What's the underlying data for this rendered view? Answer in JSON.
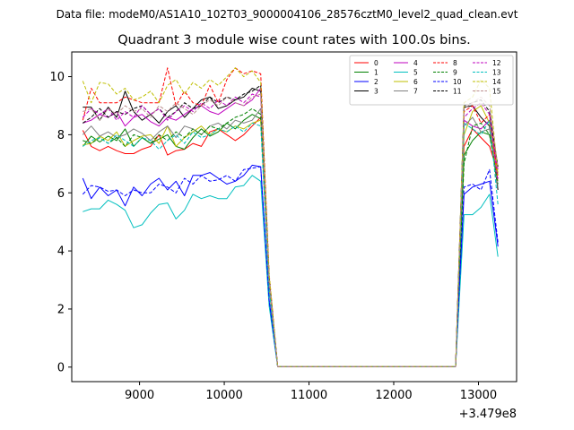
{
  "figure": {
    "suptitle": "Data file: modeM0/AS1A10_102T03_9000004106_28576cztM0_level2_quad_clean.evt"
  },
  "chart_data": {
    "type": "line",
    "title": "Quadrant 3 module wise count rates with 100.0s bins.",
    "xlabel": "",
    "ylabel": "",
    "x_offset_label": "+3.479e8",
    "xlim": [
      8200,
      13450
    ],
    "ylim": [
      -0.5,
      10.85
    ],
    "xticks": [
      9000,
      10000,
      11000,
      12000,
      13000
    ],
    "xtick_labels": [
      "9000",
      "10000",
      "11000",
      "12000",
      "13000"
    ],
    "yticks": [
      0,
      2,
      4,
      6,
      8,
      10
    ],
    "ytick_labels": [
      "0",
      "2",
      "4",
      "6",
      "8",
      "10"
    ],
    "grid": false,
    "legend": {
      "placement": "top-right",
      "columns": 4
    },
    "x": [
      8330,
      8430,
      8530,
      8630,
      8730,
      8830,
      8930,
      9030,
      9130,
      9230,
      9330,
      9430,
      9530,
      9630,
      9730,
      9830,
      9930,
      10030,
      10130,
      10230,
      10330,
      10430,
      10530,
      10630,
      10730,
      10830,
      10930,
      11030,
      11130,
      11230,
      11330,
      11430,
      11530,
      11630,
      11730,
      11830,
      11930,
      12030,
      12130,
      12230,
      12330,
      12430,
      12530,
      12630,
      12730,
      12830,
      12930,
      13030,
      13130,
      13230
    ],
    "series": [
      {
        "name": "0",
        "color": "#ff0000",
        "dash": "solid",
        "values": [
          8.15,
          7.6,
          7.45,
          7.6,
          7.45,
          7.35,
          7.35,
          7.5,
          7.6,
          8.0,
          7.3,
          7.45,
          7.5,
          7.7,
          7.6,
          8.1,
          8.2,
          8.0,
          7.8,
          8.0,
          8.3,
          8.6,
          2.8,
          0.02,
          0.02,
          0.02,
          0.02,
          0.02,
          0.02,
          0.02,
          0.02,
          0.02,
          0.02,
          0.02,
          0.02,
          0.02,
          0.02,
          0.02,
          0.02,
          0.02,
          0.02,
          0.02,
          0.02,
          0.02,
          0.02,
          7.6,
          8.2,
          7.9,
          7.6,
          6.7
        ]
      },
      {
        "name": "1",
        "color": "#008000",
        "dash": "solid",
        "values": [
          7.6,
          7.95,
          7.75,
          7.95,
          7.8,
          8.2,
          7.6,
          7.9,
          7.7,
          7.85,
          8.0,
          7.6,
          7.5,
          7.9,
          8.2,
          7.95,
          8.1,
          8.4,
          8.2,
          8.5,
          8.7,
          8.55,
          2.8,
          0.02,
          0.02,
          0.02,
          0.02,
          0.02,
          0.02,
          0.02,
          0.02,
          0.02,
          0.02,
          0.02,
          0.02,
          0.02,
          0.02,
          0.02,
          0.02,
          0.02,
          0.02,
          0.02,
          0.02,
          0.02,
          0.02,
          7.3,
          7.8,
          8.1,
          8.0,
          6.6
        ]
      },
      {
        "name": "2",
        "color": "#0000ff",
        "dash": "solid",
        "values": [
          6.5,
          5.8,
          6.2,
          5.9,
          6.1,
          5.55,
          6.2,
          5.9,
          6.3,
          6.5,
          6.1,
          6.4,
          5.9,
          6.6,
          6.6,
          6.7,
          6.5,
          6.3,
          6.4,
          6.6,
          6.95,
          6.9,
          2.3,
          0.02,
          0.02,
          0.02,
          0.02,
          0.02,
          0.02,
          0.02,
          0.02,
          0.02,
          0.02,
          0.02,
          0.02,
          0.02,
          0.02,
          0.02,
          0.02,
          0.02,
          0.02,
          0.02,
          0.02,
          0.02,
          0.02,
          5.95,
          6.2,
          6.3,
          6.4,
          4.15
        ]
      },
      {
        "name": "3",
        "color": "#000000",
        "dash": "solid",
        "values": [
          8.95,
          8.95,
          8.5,
          8.95,
          8.6,
          9.5,
          8.8,
          8.5,
          8.7,
          8.4,
          8.8,
          9.0,
          8.6,
          8.9,
          9.2,
          9.3,
          8.9,
          9.0,
          9.2,
          9.3,
          9.6,
          9.5,
          3.0,
          0.02,
          0.02,
          0.02,
          0.02,
          0.02,
          0.02,
          0.02,
          0.02,
          0.02,
          0.02,
          0.02,
          0.02,
          0.02,
          0.02,
          0.02,
          0.02,
          0.02,
          0.02,
          0.02,
          0.02,
          0.02,
          0.02,
          8.95,
          9.0,
          8.6,
          8.3,
          6.1
        ]
      },
      {
        "name": "4",
        "color": "#bf00bf",
        "dash": "solid",
        "values": [
          8.4,
          8.5,
          8.7,
          8.6,
          8.8,
          8.3,
          8.6,
          8.7,
          8.45,
          8.3,
          8.6,
          8.5,
          8.7,
          8.9,
          9.0,
          8.8,
          8.7,
          8.9,
          9.1,
          9.0,
          9.2,
          9.6,
          3.0,
          0.02,
          0.02,
          0.02,
          0.02,
          0.02,
          0.02,
          0.02,
          0.02,
          0.02,
          0.02,
          0.02,
          0.02,
          0.02,
          0.02,
          0.02,
          0.02,
          0.02,
          0.02,
          0.02,
          0.02,
          0.02,
          0.02,
          8.5,
          8.3,
          8.2,
          8.5,
          6.8
        ]
      },
      {
        "name": "5",
        "color": "#00bfbf",
        "dash": "solid",
        "values": [
          5.35,
          5.45,
          5.45,
          5.75,
          5.6,
          5.4,
          4.8,
          4.9,
          5.3,
          5.6,
          5.65,
          5.1,
          5.4,
          5.95,
          5.8,
          5.9,
          5.8,
          5.8,
          6.2,
          6.25,
          6.6,
          6.4,
          2.1,
          0.02,
          0.02,
          0.02,
          0.02,
          0.02,
          0.02,
          0.02,
          0.02,
          0.02,
          0.02,
          0.02,
          0.02,
          0.02,
          0.02,
          0.02,
          0.02,
          0.02,
          0.02,
          0.02,
          0.02,
          0.02,
          0.02,
          5.25,
          5.25,
          5.5,
          5.95,
          3.8
        ]
      },
      {
        "name": "6",
        "color": "#bfbf00",
        "dash": "solid",
        "values": [
          7.65,
          7.7,
          7.95,
          7.8,
          8.1,
          7.6,
          7.8,
          7.95,
          8.0,
          7.7,
          8.3,
          7.6,
          7.9,
          8.1,
          8.3,
          8.0,
          8.2,
          8.1,
          8.3,
          8.2,
          8.4,
          8.5,
          2.7,
          0.02,
          0.02,
          0.02,
          0.02,
          0.02,
          0.02,
          0.02,
          0.02,
          0.02,
          0.02,
          0.02,
          0.02,
          0.02,
          0.02,
          0.02,
          0.02,
          0.02,
          0.02,
          0.02,
          0.02,
          0.02,
          0.02,
          8.0,
          8.8,
          9.0,
          8.4,
          6.4
        ]
      },
      {
        "name": "7",
        "color": "#808080",
        "dash": "solid",
        "values": [
          8.0,
          8.3,
          7.95,
          8.1,
          7.9,
          8.0,
          8.2,
          8.05,
          7.8,
          8.1,
          8.3,
          7.9,
          8.3,
          8.2,
          8.0,
          8.3,
          8.4,
          8.2,
          8.5,
          8.4,
          8.5,
          8.9,
          2.8,
          0.02,
          0.02,
          0.02,
          0.02,
          0.02,
          0.02,
          0.02,
          0.02,
          0.02,
          0.02,
          0.02,
          0.02,
          0.02,
          0.02,
          0.02,
          0.02,
          0.02,
          0.02,
          0.02,
          0.02,
          0.02,
          0.02,
          8.3,
          8.6,
          8.1,
          8.2,
          6.2
        ]
      },
      {
        "name": "8",
        "color": "#ff0000",
        "dash": "dashed",
        "values": [
          8.5,
          9.6,
          9.1,
          9.1,
          9.1,
          9.3,
          9.2,
          9.1,
          9.1,
          9.1,
          10.3,
          9.0,
          9.5,
          9.1,
          9.0,
          9.7,
          9.1,
          9.9,
          10.3,
          10.1,
          10.2,
          10.1,
          3.2,
          0.02,
          0.02,
          0.02,
          0.02,
          0.02,
          0.02,
          0.02,
          0.02,
          0.02,
          0.02,
          0.02,
          0.02,
          0.02,
          0.02,
          0.02,
          0.02,
          0.02,
          0.02,
          0.02,
          0.02,
          0.02,
          0.02,
          8.8,
          9.0,
          8.4,
          8.7,
          6.5
        ]
      },
      {
        "name": "9",
        "color": "#008000",
        "dash": "dashed",
        "values": [
          7.8,
          7.7,
          7.9,
          7.7,
          7.9,
          7.6,
          8.0,
          7.9,
          7.7,
          8.0,
          7.8,
          8.1,
          7.9,
          8.2,
          8.0,
          8.3,
          8.2,
          8.4,
          8.6,
          8.7,
          8.9,
          8.7,
          2.8,
          0.02,
          0.02,
          0.02,
          0.02,
          0.02,
          0.02,
          0.02,
          0.02,
          0.02,
          0.02,
          0.02,
          0.02,
          0.02,
          0.02,
          0.02,
          0.02,
          0.02,
          0.02,
          0.02,
          0.02,
          0.02,
          0.02,
          7.0,
          8.3,
          8.4,
          8.0,
          6.3
        ]
      },
      {
        "name": "10",
        "color": "#0000ff",
        "dash": "dashed",
        "values": [
          5.95,
          6.25,
          6.2,
          6.05,
          6.1,
          5.9,
          6.1,
          6.0,
          6.0,
          6.3,
          6.2,
          6.0,
          6.5,
          6.3,
          6.6,
          6.4,
          6.45,
          6.6,
          6.4,
          6.8,
          6.85,
          6.9,
          2.3,
          0.02,
          0.02,
          0.02,
          0.02,
          0.02,
          0.02,
          0.02,
          0.02,
          0.02,
          0.02,
          0.02,
          0.02,
          0.02,
          0.02,
          0.02,
          0.02,
          0.02,
          0.02,
          0.02,
          0.02,
          0.02,
          0.02,
          6.2,
          6.3,
          6.1,
          6.8,
          4.3
        ]
      },
      {
        "name": "11",
        "color": "#000000",
        "dash": "dashed",
        "values": [
          8.4,
          8.6,
          8.9,
          8.6,
          8.8,
          8.7,
          8.9,
          9.0,
          8.7,
          8.9,
          8.6,
          8.8,
          9.1,
          8.9,
          9.0,
          9.3,
          9.1,
          9.3,
          9.2,
          9.4,
          9.5,
          9.7,
          3.1,
          0.02,
          0.02,
          0.02,
          0.02,
          0.02,
          0.02,
          0.02,
          0.02,
          0.02,
          0.02,
          0.02,
          0.02,
          0.02,
          0.02,
          0.02,
          0.02,
          0.02,
          0.02,
          0.02,
          0.02,
          0.02,
          0.02,
          9.0,
          9.1,
          9.2,
          8.8,
          6.9
        ]
      },
      {
        "name": "12",
        "color": "#bf00bf",
        "dash": "dashed",
        "values": [
          8.6,
          8.9,
          8.7,
          8.9,
          8.5,
          8.8,
          8.6,
          9.0,
          8.7,
          8.9,
          8.5,
          8.8,
          9.0,
          8.8,
          9.1,
          8.9,
          9.2,
          9.0,
          9.3,
          9.1,
          9.4,
          9.3,
          3.0,
          0.02,
          0.02,
          0.02,
          0.02,
          0.02,
          0.02,
          0.02,
          0.02,
          0.02,
          0.02,
          0.02,
          0.02,
          0.02,
          0.02,
          0.02,
          0.02,
          0.02,
          0.02,
          0.02,
          0.02,
          0.02,
          0.02,
          8.6,
          8.9,
          9.1,
          8.7,
          6.4
        ]
      },
      {
        "name": "13",
        "color": "#00bfbf",
        "dash": "dashed",
        "values": [
          7.6,
          7.8,
          7.9,
          7.7,
          8.0,
          7.8,
          7.6,
          7.9,
          7.8,
          7.5,
          7.8,
          8.0,
          7.7,
          8.1,
          7.9,
          8.0,
          8.2,
          8.1,
          8.3,
          8.1,
          8.4,
          8.3,
          2.7,
          0.02,
          0.02,
          0.02,
          0.02,
          0.02,
          0.02,
          0.02,
          0.02,
          0.02,
          0.02,
          0.02,
          0.02,
          0.02,
          0.02,
          0.02,
          0.02,
          0.02,
          0.02,
          0.02,
          0.02,
          0.02,
          0.02,
          8.4,
          8.2,
          8.0,
          8.5,
          5.6
        ]
      },
      {
        "name": "14",
        "color": "#bfbf00",
        "dash": "dashed",
        "values": [
          9.85,
          9.1,
          9.8,
          9.75,
          9.4,
          9.6,
          9.2,
          9.3,
          9.5,
          9.1,
          9.7,
          9.9,
          9.4,
          9.8,
          9.6,
          9.9,
          9.7,
          10.0,
          10.3,
          10.0,
          10.2,
          9.8,
          3.2,
          0.02,
          0.02,
          0.02,
          0.02,
          0.02,
          0.02,
          0.02,
          0.02,
          0.02,
          0.02,
          0.02,
          0.02,
          0.02,
          0.02,
          0.02,
          0.02,
          0.02,
          0.02,
          0.02,
          0.02,
          0.02,
          0.02,
          9.1,
          9.3,
          9.9,
          9.6,
          6.6
        ]
      },
      {
        "name": "15",
        "color": "#bc8f8f",
        "dash": "dashed",
        "values": [
          8.8,
          8.9,
          8.5,
          8.9,
          8.7,
          9.0,
          8.8,
          8.9,
          8.6,
          9.0,
          8.8,
          9.1,
          8.9,
          8.7,
          9.0,
          9.2,
          9.0,
          9.3,
          9.1,
          9.0,
          9.3,
          9.4,
          3.0,
          0.02,
          0.02,
          0.02,
          0.02,
          0.02,
          0.02,
          0.02,
          0.02,
          0.02,
          0.02,
          0.02,
          0.02,
          0.02,
          0.02,
          0.02,
          0.02,
          0.02,
          0.02,
          0.02,
          0.02,
          0.02,
          0.02,
          8.9,
          9.1,
          9.3,
          9.0,
          6.9
        ]
      }
    ]
  }
}
